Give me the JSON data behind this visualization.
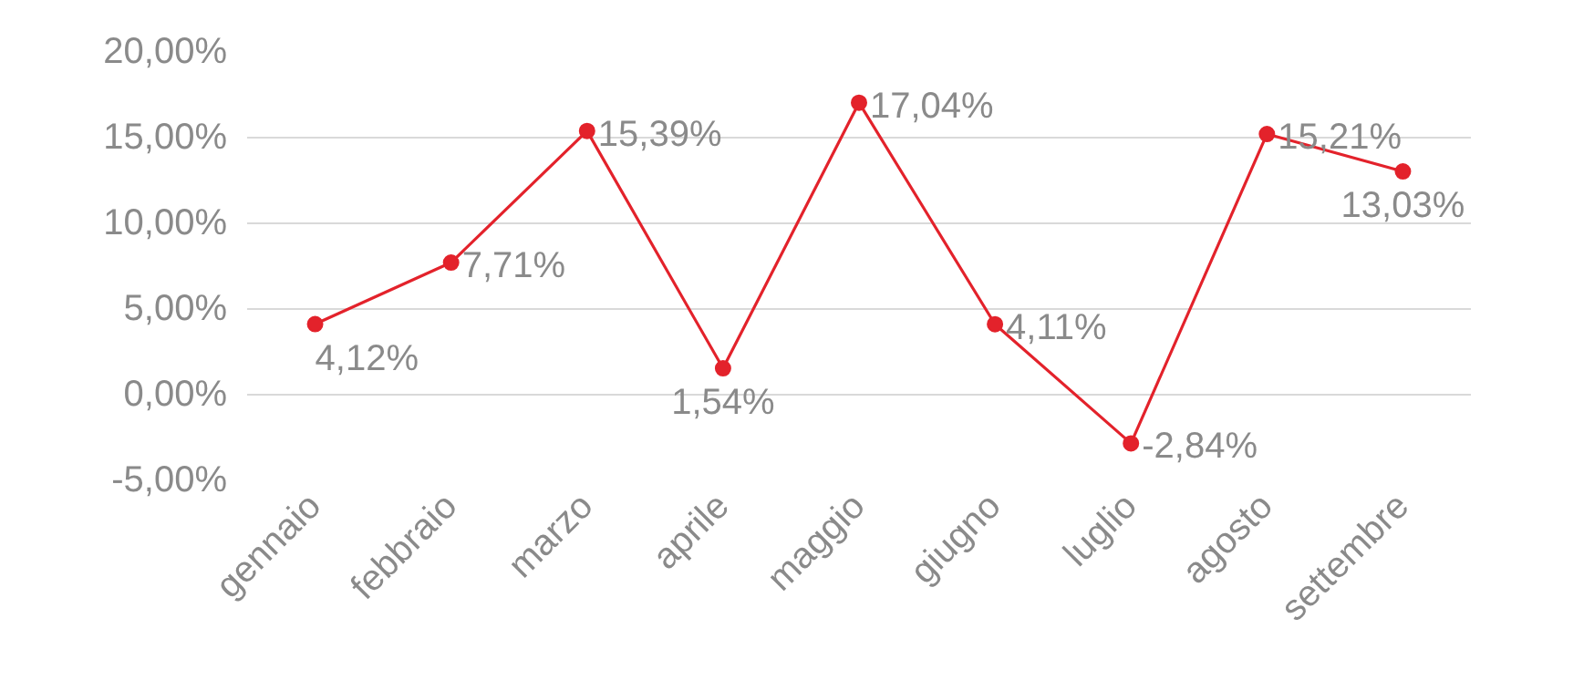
{
  "chart_data": {
    "type": "line",
    "categories": [
      "gennaio",
      "febbraio",
      "marzo",
      "aprile",
      "maggio",
      "giugno",
      "luglio",
      "agosto",
      "settembre"
    ],
    "series": [
      {
        "color": "#e3222b",
        "values": [
          4.12,
          7.71,
          15.39,
          1.54,
          17.04,
          4.11,
          -2.84,
          15.21,
          13.03
        ],
        "value_labels": [
          "4,12%",
          "7,71%",
          "15,39%",
          "1,54%",
          "17,04%",
          "4,11%",
          "-2,84%",
          "15,21%",
          "13,03%"
        ]
      }
    ],
    "ylim": [
      -5,
      20
    ],
    "yticks": [
      {
        "value": -5,
        "label": "-5,00%"
      },
      {
        "value": 0,
        "label": "0,00%"
      },
      {
        "value": 5,
        "label": "5,00%"
      },
      {
        "value": 10,
        "label": "10,00%"
      },
      {
        "value": 15,
        "label": "15,00%"
      },
      {
        "value": 20,
        "label": "20,00%"
      }
    ],
    "grid": "y",
    "marker": "circle",
    "line_style": "solid"
  }
}
